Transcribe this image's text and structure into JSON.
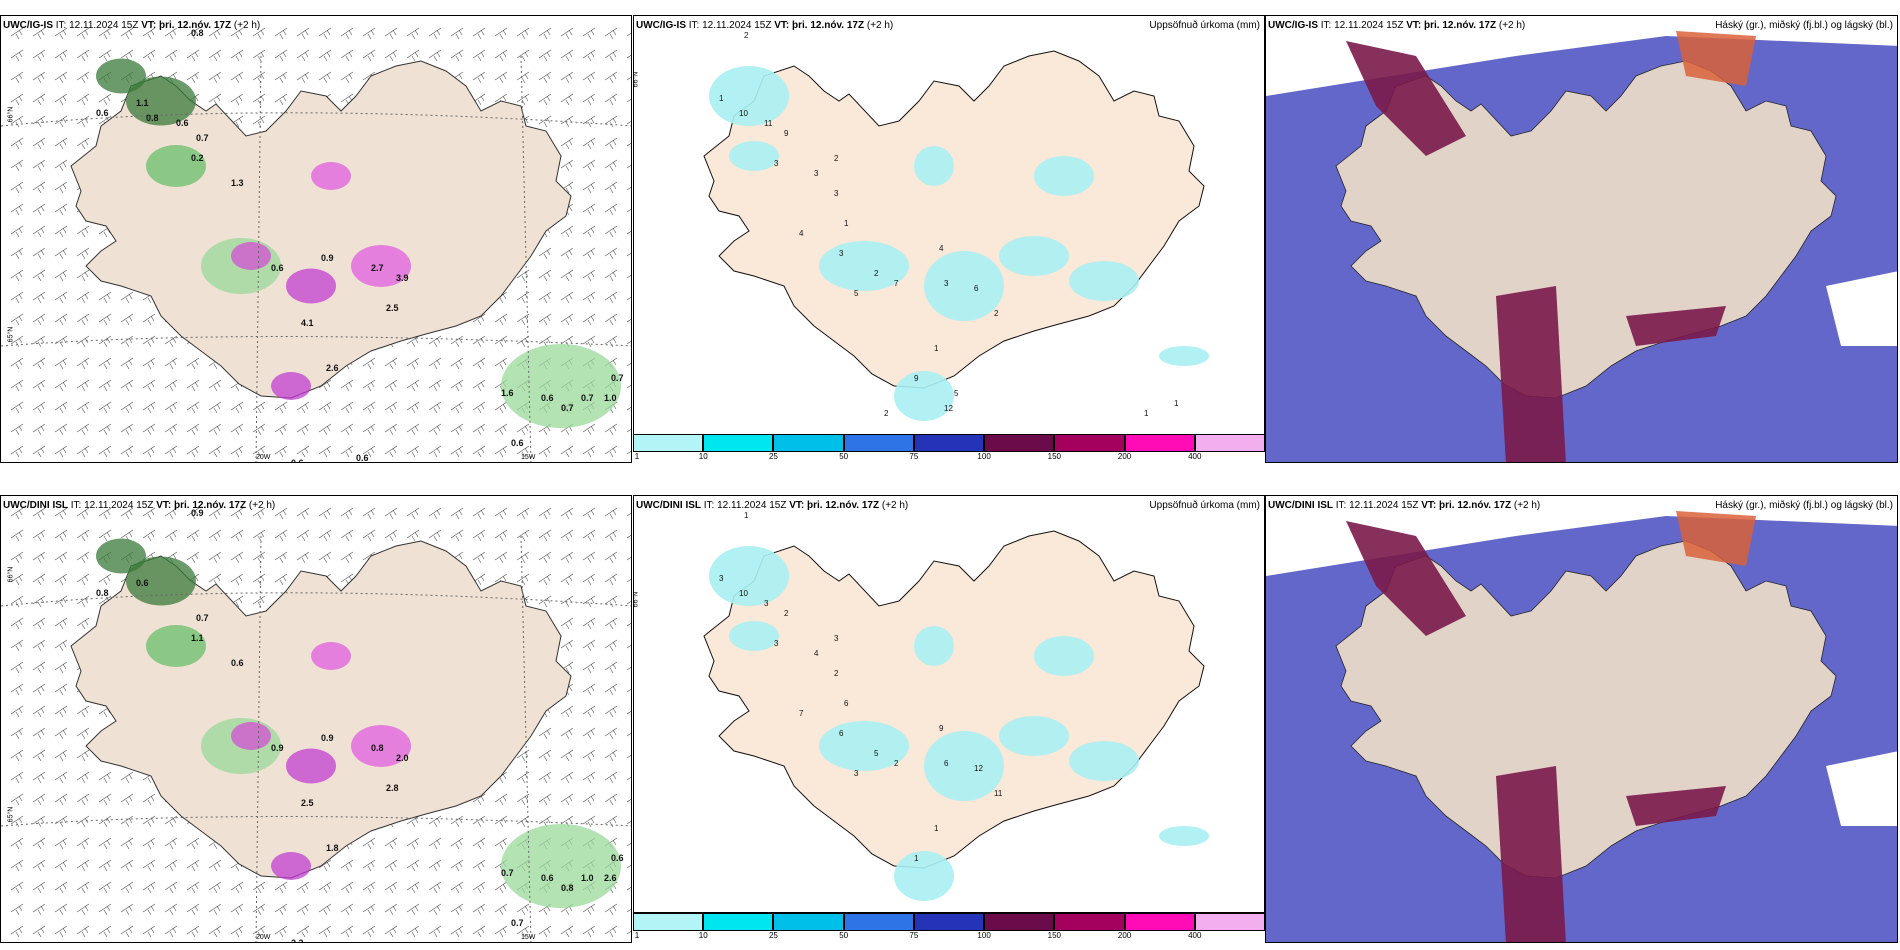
{
  "rows": [
    {
      "model": "UWC/IG-IS",
      "it_label": "IT:",
      "it_value": "12.11.2024 15Z",
      "vt_label": "VT:",
      "vt_value": "þri. 12.nóv. 17Z",
      "lead": "(+2 h)"
    },
    {
      "model": "UWC/DINI ISL",
      "it_label": "IT:",
      "it_value": "12.11.2024 15Z",
      "vt_label": "VT:",
      "vt_value": "þri. 12.nóv. 17Z",
      "lead": "(+2 h)"
    }
  ],
  "precip_title": "Uppsöfnuð úrkoma (mm)",
  "cloud_title": "Háský (gr.), miðský (fj.bl.) og lágský (bl.)",
  "colorbar": {
    "ticks": [
      "1",
      "10",
      "25",
      "50",
      "75",
      "100",
      "150",
      "200",
      "400"
    ],
    "colors": [
      "#b3f5f7",
      "#00e6f0",
      "#00c0ea",
      "#2f74e6",
      "#2533b8",
      "#6b0b4a",
      "#a4005e",
      "#ff0cb6",
      "#f3aef0"
    ]
  },
  "map_labels": {
    "lat_66": "66°N",
    "lat_65": "65°N",
    "lat_64": "64°N",
    "lon_20": "20W",
    "lon_15": "15W"
  },
  "wind_values_top": [
    "0.8",
    "0.6",
    "1.1",
    "0.7",
    "0.2",
    "1.3",
    "0.6",
    "0.9",
    "2.7",
    "3.9",
    "2.5",
    "4.1",
    "2.6",
    "0.6",
    "1.6",
    "0.6",
    "0.7",
    "0.7",
    "0.7",
    "1.0",
    "0.6",
    "0.6",
    "0.8",
    "0.6"
  ],
  "wind_values_bottom": [
    "0.9",
    "0.8",
    "0.6",
    "0.7",
    "1.1",
    "0.6",
    "0.9",
    "0.9",
    "0.8",
    "2.0",
    "2.8",
    "2.5",
    "1.8",
    "2.2",
    "0.7",
    "0.6",
    "0.8",
    "1.0",
    "0.6",
    "2.6",
    "0.7"
  ],
  "precip_values_top": [
    "2",
    "1",
    "10",
    "11",
    "9",
    "3",
    "3",
    "2",
    "3",
    "1",
    "4",
    "3",
    "2",
    "5",
    "7",
    "4",
    "3",
    "6",
    "2",
    "1",
    "9",
    "5",
    "12",
    "2",
    "1",
    "1"
  ],
  "precip_values_bottom": [
    "1",
    "3",
    "10",
    "3",
    "2",
    "3",
    "4",
    "3",
    "2",
    "6",
    "7",
    "6",
    "5",
    "3",
    "2",
    "9",
    "6",
    "12",
    "11",
    "1",
    "1"
  ]
}
